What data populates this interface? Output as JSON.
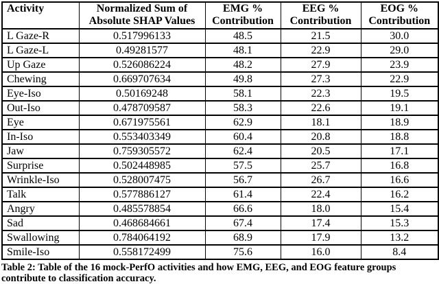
{
  "page": {
    "background_color": "#ffffff",
    "text_color": "#000000",
    "border_color": "#000000"
  },
  "table": {
    "columns": [
      {
        "id": "activity",
        "lines": [
          "Activity"
        ],
        "align": "left"
      },
      {
        "id": "shap",
        "lines": [
          "Normalized Sum of",
          "Absolute SHAP Values"
        ],
        "align": "center"
      },
      {
        "id": "emg",
        "lines": [
          "EMG %",
          "Contribution"
        ],
        "align": "center"
      },
      {
        "id": "eeg",
        "lines": [
          "EEG %",
          "Contribution"
        ],
        "align": "center"
      },
      {
        "id": "eog",
        "lines": [
          "EOG %",
          "Contribution"
        ],
        "align": "center"
      }
    ],
    "rows": [
      [
        "L Gaze-R",
        "0.517996133",
        "48.5",
        "21.5",
        "30.0"
      ],
      [
        "L Gaze-L",
        "0.49281577",
        "48.1",
        "22.9",
        "29.0"
      ],
      [
        "Up Gaze",
        "0.526086224",
        "48.2",
        "27.9",
        "23.9"
      ],
      [
        "Chewing",
        "0.669707634",
        "49.8",
        "27.3",
        "22.9"
      ],
      [
        "Eye-Iso",
        "0.50169248",
        "58.1",
        "22.3",
        "19.5"
      ],
      [
        "Out-Iso",
        "0.478709587",
        "58.3",
        "22.6",
        "19.1"
      ],
      [
        "Eye",
        "0.671975561",
        "62.9",
        "18.1",
        "18.9"
      ],
      [
        "In-Iso",
        "0.553403349",
        "60.4",
        "20.8",
        "18.8"
      ],
      [
        "Jaw",
        "0.759305572",
        "62.4",
        "20.5",
        "17.1"
      ],
      [
        "Surprise",
        "0.502448985",
        "57.5",
        "25.7",
        "16.8"
      ],
      [
        "Wrinkle-Iso",
        "0.528007475",
        "56.7",
        "26.7",
        "16.6"
      ],
      [
        "Talk",
        "0.577886127",
        "61.4",
        "22.4",
        "16.2"
      ],
      [
        "Angry",
        "0.485578854",
        "66.6",
        "18.0",
        "15.4"
      ],
      [
        "Sad",
        "0.468684661",
        "67.4",
        "17.4",
        "15.3"
      ],
      [
        "Swallowing",
        "0.784064192",
        "68.9",
        "17.9",
        "13.2"
      ],
      [
        "Smile-Iso",
        "0.558172499",
        "75.6",
        "16.0",
        "8.4"
      ]
    ]
  },
  "caption": "Table 2: Table of the 16 mock-PerfO activities and how EMG, EEG, and EOG feature groups contribute to classification accuracy."
}
